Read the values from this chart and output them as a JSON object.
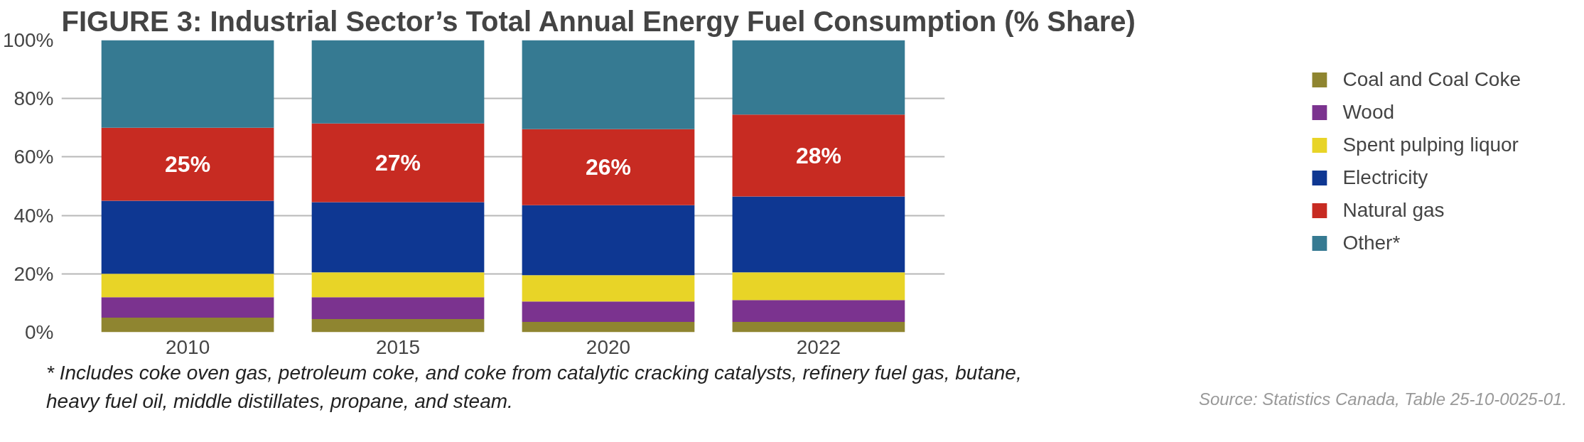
{
  "chart_data": {
    "type": "bar",
    "stacked": true,
    "title": "FIGURE 3: Industrial Sector’s Total Annual Energy Fuel Consumption (% Share)",
    "categories": [
      "2010",
      "2015",
      "2020",
      "2022"
    ],
    "series": [
      {
        "name": "Coal and Coal Coke",
        "color": "#8f8530",
        "values": [
          5,
          4.5,
          3.5,
          3.5
        ]
      },
      {
        "name": "Wood",
        "color": "#7b338f",
        "values": [
          7,
          7.5,
          7,
          7.5
        ]
      },
      {
        "name": "Spent pulping liquor",
        "color": "#e8d427",
        "values": [
          8,
          8.5,
          9,
          9.5
        ]
      },
      {
        "name": "Electricity",
        "color": "#0e3792",
        "values": [
          25,
          24,
          24,
          26
        ]
      },
      {
        "name": "Natural gas",
        "color": "#c72b22",
        "values": [
          25,
          27,
          26,
          28
        ],
        "value_labels": [
          "25%",
          "27%",
          "26%",
          "28%"
        ]
      },
      {
        "name": "Other*",
        "color": "#367a92",
        "values": [
          30,
          28.5,
          30.5,
          25.5
        ]
      }
    ],
    "ylim": [
      0,
      100
    ],
    "yticks": [
      {
        "value": 0,
        "label": "0%"
      },
      {
        "value": 20,
        "label": "20%"
      },
      {
        "value": 40,
        "label": "40%"
      },
      {
        "value": 60,
        "label": "60%"
      },
      {
        "value": 80,
        "label": "80%"
      },
      {
        "value": 100,
        "label": "100%"
      }
    ],
    "grid": "y",
    "legend": "right",
    "annotations": [
      "* Includes coke oven gas, petroleum coke, and coke from catalytic cracking catalysts, refinery fuel gas, butane, heavy fuel oil, middle distillates, propane, and steam.",
      "Source: Statistics Canada, Table 25-10-0025-01."
    ]
  }
}
